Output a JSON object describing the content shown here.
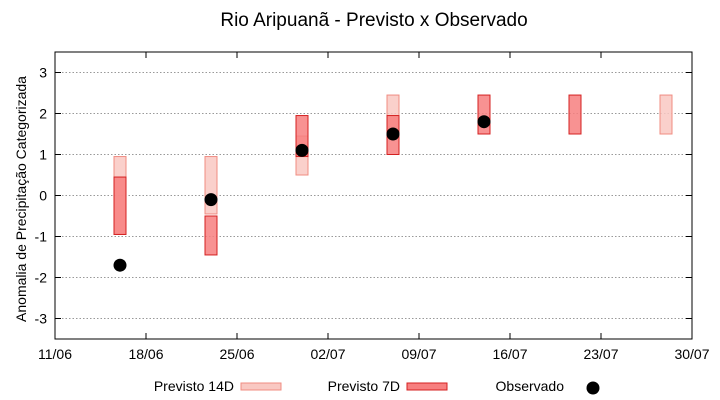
{
  "chart_data": {
    "type": "range-bar",
    "title": "Rio Aripuanã - Previsto x Observado",
    "ylabel": "Anomalia de Precipitação Categorizada",
    "xlabel": "",
    "ylim": [
      -3.5,
      3.5
    ],
    "yticks": [
      3,
      2,
      1,
      0,
      -1,
      -2,
      -3
    ],
    "ytick_labels": [
      "3",
      "2",
      "1",
      "0",
      "-1",
      "-2",
      "-3"
    ],
    "xlim": [
      "11/06",
      "30/07"
    ],
    "xticks": [
      "11/06",
      "18/06",
      "25/06",
      "02/07",
      "09/07",
      "16/07",
      "23/07",
      "30/07"
    ],
    "grid": true,
    "legend_position": "bottom",
    "colors": {
      "previsto14_fill": "#f9c8c2",
      "previsto14_stroke": "#f08c82",
      "previsto7_fill": "#f77f7f",
      "previsto7_stroke": "#d42020",
      "observado": "#000000",
      "grid": "#999999"
    },
    "series": [
      {
        "name": "Previsto 14D",
        "kind": "range",
        "points": [
          {
            "x": "16/06",
            "low": -0.95,
            "high": 0.95
          },
          {
            "x": "23/06",
            "low": -0.45,
            "high": 0.95
          },
          {
            "x": "30/06",
            "low": 0.5,
            "high": 1.45
          },
          {
            "x": "07/07",
            "low": 1.5,
            "high": 2.45
          },
          {
            "x": "28/07",
            "low": 1.5,
            "high": 2.45
          }
        ]
      },
      {
        "name": "Previsto 7D",
        "kind": "range",
        "points": [
          {
            "x": "16/06",
            "low": -0.95,
            "high": 0.45
          },
          {
            "x": "23/06",
            "low": -1.45,
            "high": -0.5
          },
          {
            "x": "30/06",
            "low": 0.95,
            "high": 1.95
          },
          {
            "x": "07/07",
            "low": 1.0,
            "high": 1.95
          },
          {
            "x": "14/07",
            "low": 1.5,
            "high": 2.45
          },
          {
            "x": "21/07",
            "low": 1.5,
            "high": 2.45
          }
        ]
      },
      {
        "name": "Observado",
        "kind": "point",
        "points": [
          {
            "x": "16/06",
            "y": -1.7
          },
          {
            "x": "23/06",
            "y": -0.1
          },
          {
            "x": "30/06",
            "y": 1.1
          },
          {
            "x": "07/07",
            "y": 1.5
          },
          {
            "x": "14/07",
            "y": 1.8
          }
        ]
      }
    ]
  }
}
